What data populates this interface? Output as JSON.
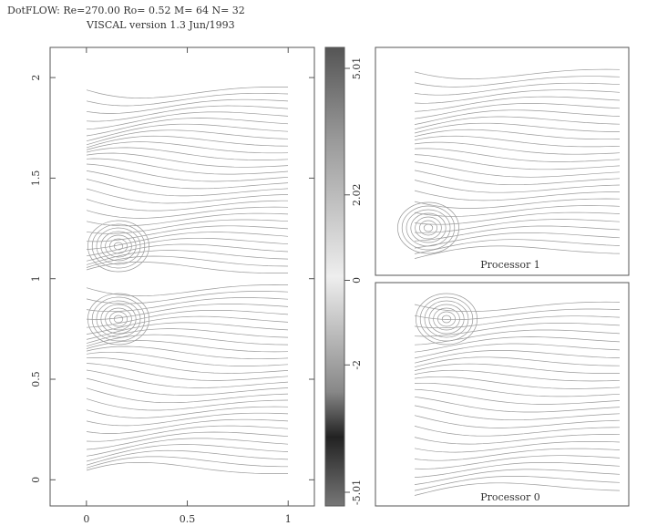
{
  "chart_data": {
    "type": "contour",
    "title": "DotFLOW: Re=270.00 Ro=  0.52  M=  64 N=  32",
    "subtitle": "VISCAL version 1.3     Jun/1993",
    "xlim": [
      -0.18,
      1.13
    ],
    "xticks": [
      0,
      0.5,
      1
    ],
    "ylim": [
      -0.13,
      2.15
    ],
    "yticks": [
      0,
      0.5,
      1,
      1.5,
      2
    ],
    "clim": [
      -5.01,
      5.01
    ],
    "cticks": [
      5.01,
      2.02,
      0,
      -2,
      -5.01
    ],
    "annotations": [
      "Processor 1",
      "Processor 0"
    ]
  }
}
